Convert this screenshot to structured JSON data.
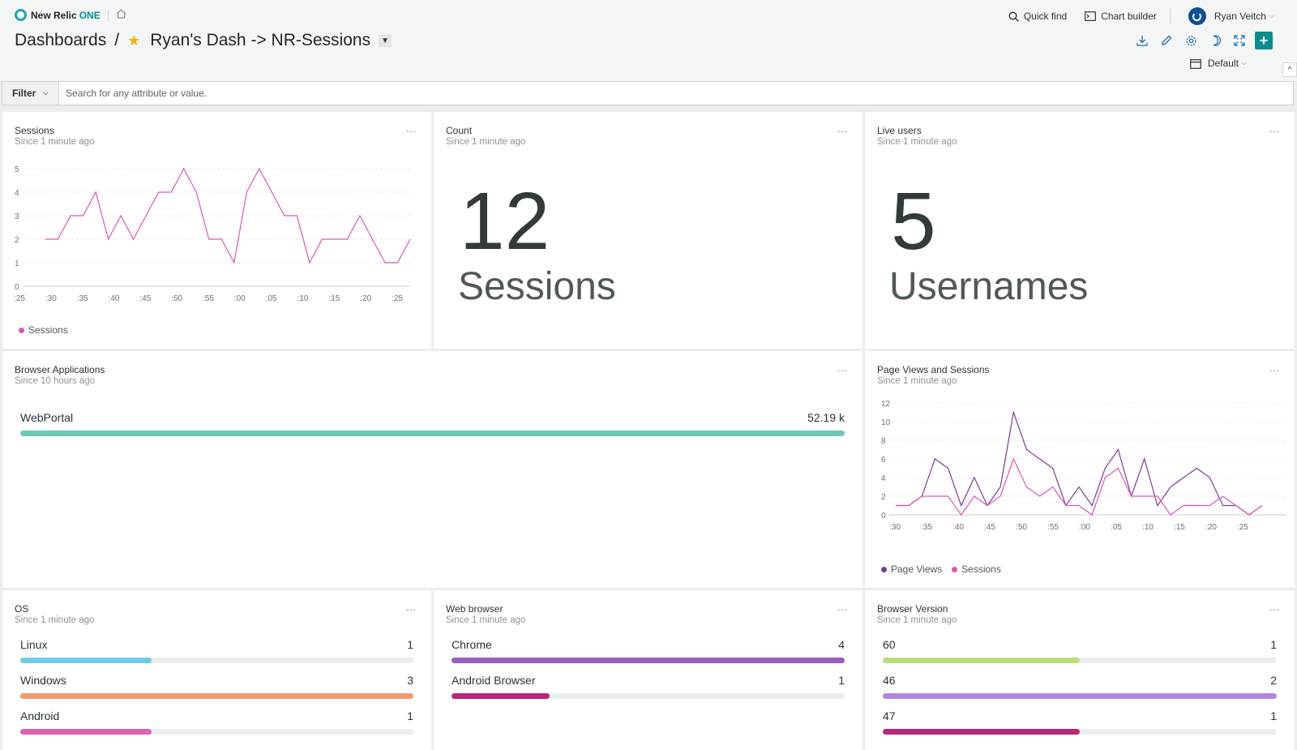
{
  "header": {
    "brand": "New Relic",
    "brand_suffix": "ONE",
    "quick_find": "Quick find",
    "chart_builder": "Chart builder",
    "user_name": "Ryan Veitch",
    "breadcrumb_root": "Dashboards",
    "breadcrumb_sep": "/",
    "dashboard_name": "Ryan's Dash -> NR-Sessions",
    "time_picker": "Default"
  },
  "filter": {
    "label": "Filter",
    "placeholder": "Search for any attribute or value."
  },
  "colors": {
    "sessions_pink": "#d957b5",
    "page_views_purple": "#7a3e8f",
    "teal": "#6fc8b6",
    "linux": "#6ccde8",
    "windows": "#f09a72",
    "android": "#e060b4",
    "chrome": "#9a5dbc",
    "android_browser": "#b8267a",
    "v60": "#b8de7a",
    "v46": "#b486d9",
    "v47": "#b8267a"
  },
  "widgets": {
    "sessions": {
      "title": "Sessions",
      "subtitle": "Since 1 minute ago",
      "menu": "...",
      "legend": "Sessions"
    },
    "count": {
      "title": "Count",
      "subtitle": "Since 1 minute ago",
      "menu": "...",
      "value": "12",
      "label": "Sessions"
    },
    "live_users": {
      "title": "Live users",
      "subtitle": "Since 1 minute ago",
      "menu": "...",
      "value": "5",
      "label": "Usernames"
    },
    "browser_apps": {
      "title": "Browser Applications",
      "subtitle": "Since 10 hours ago",
      "menu": "...",
      "rows": [
        {
          "label": "WebPortal",
          "value": "52.19 k",
          "fraction": 1.0
        }
      ]
    },
    "page_views": {
      "title": "Page Views and Sessions",
      "subtitle": "Since 1 minute ago",
      "menu": "...",
      "legend": [
        "Page Views",
        "Sessions"
      ]
    },
    "os": {
      "title": "OS",
      "subtitle": "Since 1 minute ago",
      "menu": "...",
      "rows": [
        {
          "label": "Linux",
          "value": "1",
          "fraction": 0.333
        },
        {
          "label": "Windows",
          "value": "3",
          "fraction": 1.0
        },
        {
          "label": "Android",
          "value": "1",
          "fraction": 0.333
        }
      ]
    },
    "web_browser": {
      "title": "Web browser",
      "subtitle": "Since 1 minute ago",
      "menu": "...",
      "rows": [
        {
          "label": "Chrome",
          "value": "4",
          "fraction": 1.0
        },
        {
          "label": "Android Browser",
          "value": "1",
          "fraction": 0.25
        }
      ]
    },
    "browser_version": {
      "title": "Browser Version",
      "subtitle": "Since 1 minute ago",
      "menu": "...",
      "rows": [
        {
          "label": "60",
          "value": "1",
          "fraction": 0.5
        },
        {
          "label": "46",
          "value": "2",
          "fraction": 1.0
        },
        {
          "label": "47",
          "value": "1",
          "fraction": 0.5
        }
      ]
    }
  },
  "chart_data": [
    {
      "type": "line",
      "yticks": [
        0,
        1,
        2,
        3,
        4,
        5
      ],
      "ylim": [
        0,
        5
      ],
      "xticks": [
        ":25",
        ":30",
        ":35",
        ":40",
        ":45",
        ":50",
        ":55",
        ":00",
        ":05",
        ":10",
        ":15",
        ":20",
        ":25"
      ],
      "series": [
        {
          "name": "Sessions",
          "values": [
            2,
            2,
            3,
            3,
            4,
            2,
            3,
            2,
            3,
            4,
            4,
            5,
            4,
            2,
            2,
            1,
            4,
            5,
            4,
            3,
            3,
            1,
            2,
            2,
            2,
            3,
            2,
            1,
            1,
            2
          ]
        }
      ]
    },
    {
      "type": "line",
      "yticks": [
        0,
        2,
        4,
        6,
        8,
        10,
        12
      ],
      "ylim": [
        0,
        12
      ],
      "xticks": [
        ":30",
        ":35",
        ":40",
        ":45",
        ":50",
        ":55",
        ":00",
        ":05",
        ":10",
        ":15",
        ":20",
        ":25"
      ],
      "series": [
        {
          "name": "Page Views",
          "values": [
            1,
            1,
            2,
            6,
            5,
            1,
            4,
            1,
            3,
            11,
            7,
            6,
            5,
            1,
            3,
            1,
            5,
            7,
            2,
            6,
            1,
            3,
            4,
            5,
            4,
            1,
            1,
            0,
            1
          ]
        },
        {
          "name": "Sessions",
          "values": [
            1,
            1,
            2,
            2,
            2,
            0,
            2,
            1,
            2,
            6,
            3,
            2,
            3,
            1,
            1,
            0,
            4,
            5,
            2,
            2,
            2,
            0,
            1,
            1,
            1,
            2,
            1,
            0,
            1
          ]
        }
      ]
    }
  ]
}
